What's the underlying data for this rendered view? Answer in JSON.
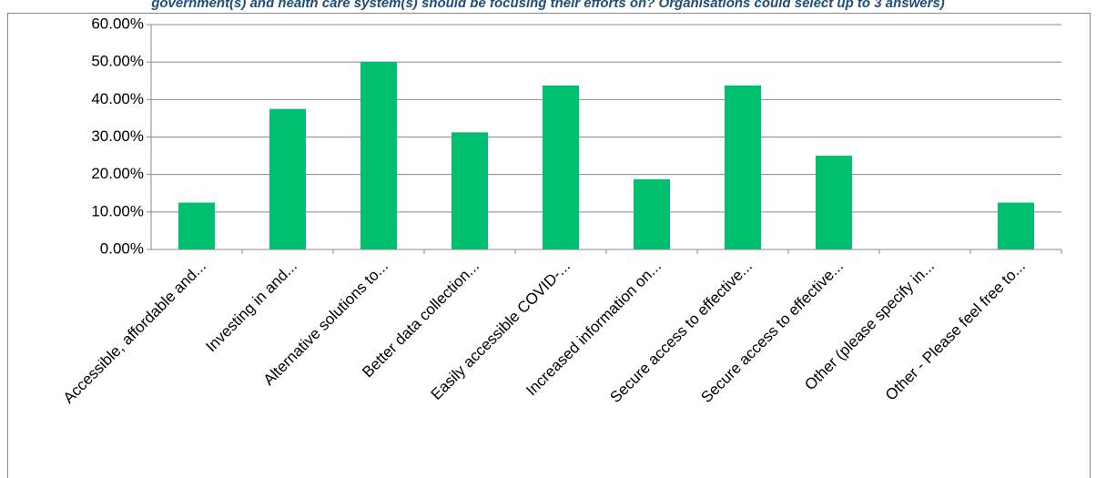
{
  "chart_data": {
    "type": "bar",
    "title": "government(s) and health care system(s) should be focusing their efforts on? Organisations could select up to 3 answers)",
    "categories": [
      "Accessible, affordable and...",
      "Investing in and...",
      "Alternative solutions to...",
      "Better data collection...",
      "Easily accessible COVID-...",
      "Increased information on...",
      "Secure access to effective...",
      "Secure access to effective...",
      "Other (please specify in...",
      "Other - Please feel free to..."
    ],
    "values": [
      12.5,
      37.5,
      50,
      31.25,
      43.75,
      18.75,
      43.75,
      25,
      0,
      12.5
    ],
    "color": "#00bf6f",
    "ylim": [
      0,
      60
    ],
    "yticks": [
      {
        "value": 0,
        "label": "0.00%"
      },
      {
        "value": 10,
        "label": "10.00%"
      },
      {
        "value": 20,
        "label": "20.00%"
      },
      {
        "value": 30,
        "label": "30.00%"
      },
      {
        "value": 40,
        "label": "40.00%"
      },
      {
        "value": 50,
        "label": "50.00%"
      },
      {
        "value": 60,
        "label": "60.00%"
      }
    ],
    "grid": true
  }
}
